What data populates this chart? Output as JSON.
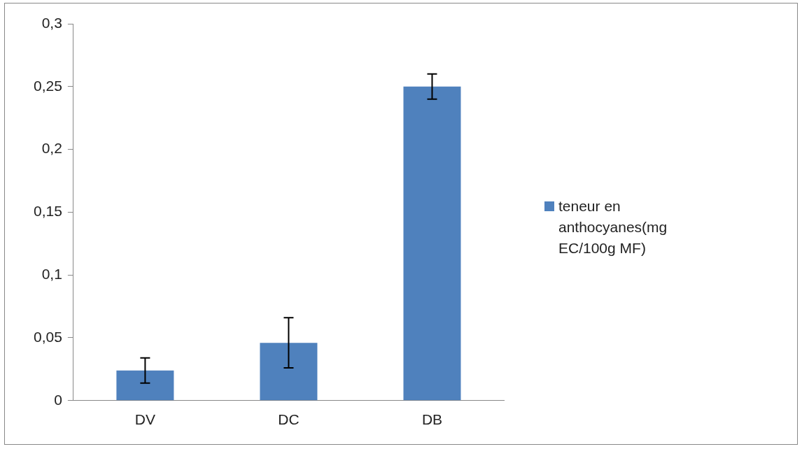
{
  "chart_data": {
    "type": "bar",
    "categories": [
      "DV",
      "DC",
      "DB"
    ],
    "series": [
      {
        "name": "teneur en anthocyanes(mg EC/100g MF)",
        "color": "#4f81bd",
        "values": [
          0.024,
          0.046,
          0.25
        ],
        "errors": [
          0.01,
          0.02,
          0.01
        ]
      }
    ],
    "ylim": [
      0,
      0.3
    ],
    "yticks": [
      {
        "value": 0,
        "label": "0"
      },
      {
        "value": 0.05,
        "label": "0,05"
      },
      {
        "value": 0.1,
        "label": "0,1"
      },
      {
        "value": 0.15,
        "label": "0,15"
      },
      {
        "value": 0.2,
        "label": "0,2"
      },
      {
        "value": 0.25,
        "label": "0,25"
      },
      {
        "value": 0.3,
        "label": "0,3"
      }
    ],
    "grid": false,
    "legend": "right"
  }
}
